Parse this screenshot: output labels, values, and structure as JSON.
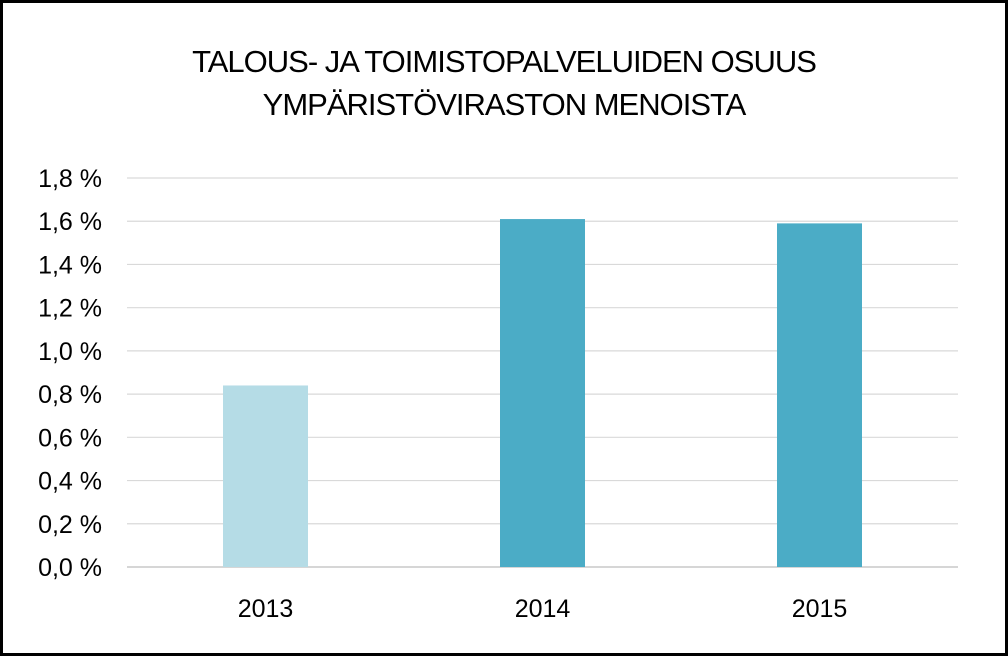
{
  "chart_data": {
    "type": "bar",
    "title_lines": [
      "TALOUS- JA TOIMISTOPALVELUIDEN OSUUS",
      "YMPÄRISTÖVIRASTON MENOISTA"
    ],
    "categories": [
      "2013",
      "2014",
      "2015"
    ],
    "values": [
      0.84,
      1.61,
      1.59
    ],
    "value_unit": "%",
    "ylim": [
      0,
      1.8
    ],
    "yticks": [
      "0,0 %",
      "0,2 %",
      "0,4 %",
      "0,6 %",
      "0,8 %",
      "1,0 %",
      "1,2 %",
      "1,4 %",
      "1,6 %",
      "1,8 %"
    ],
    "ytick_values": [
      0,
      0.2,
      0.4,
      0.6,
      0.8,
      1.0,
      1.2,
      1.4,
      1.6,
      1.8
    ],
    "bar_colors": [
      "#b5dce6",
      "#4bacc6",
      "#4bacc6"
    ],
    "grid": true,
    "legend": "none",
    "xlabel": "",
    "ylabel": ""
  }
}
